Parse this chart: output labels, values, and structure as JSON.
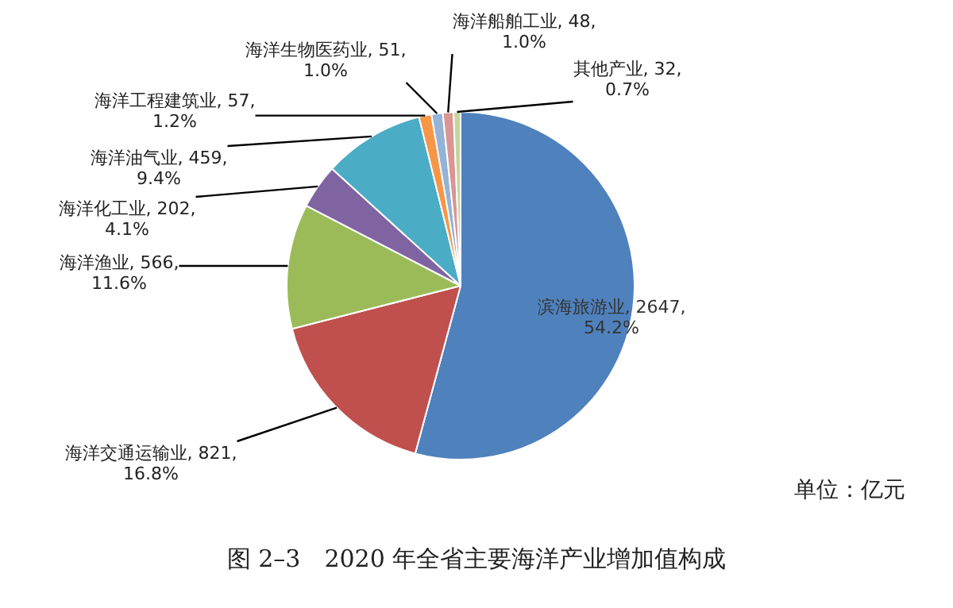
{
  "chart_data": {
    "type": "pie",
    "title": "图 2–3　2020 年全省主要海洋产业增加值构成",
    "categories": [
      "滨海旅游业",
      "海洋交通运输业",
      "海洋渔业",
      "海洋化工业",
      "海洋油气业",
      "海洋工程建筑业",
      "海洋生物医药业",
      "海洋船舶工业",
      "其他产业"
    ],
    "values": [
      2647,
      821,
      566,
      202,
      459,
      57,
      51,
      48,
      32
    ],
    "colors": [
      "#4f81bd",
      "#c0504d",
      "#9bbb59",
      "#8064a2",
      "#4bacc6",
      "#f79646",
      "#95b3d7",
      "#d99694",
      "#c3d69b"
    ],
    "value_labels": [
      "2647, 54.2%",
      "821, 16.8%",
      "566, 11.6%",
      "202, 4.1%",
      "459, 9.4%",
      "57, 1.2%",
      "51, 1.0%",
      "48, 1.0%",
      "32, 0.7%"
    ],
    "annotations": [
      "单位：亿元"
    ],
    "legend": false
  }
}
